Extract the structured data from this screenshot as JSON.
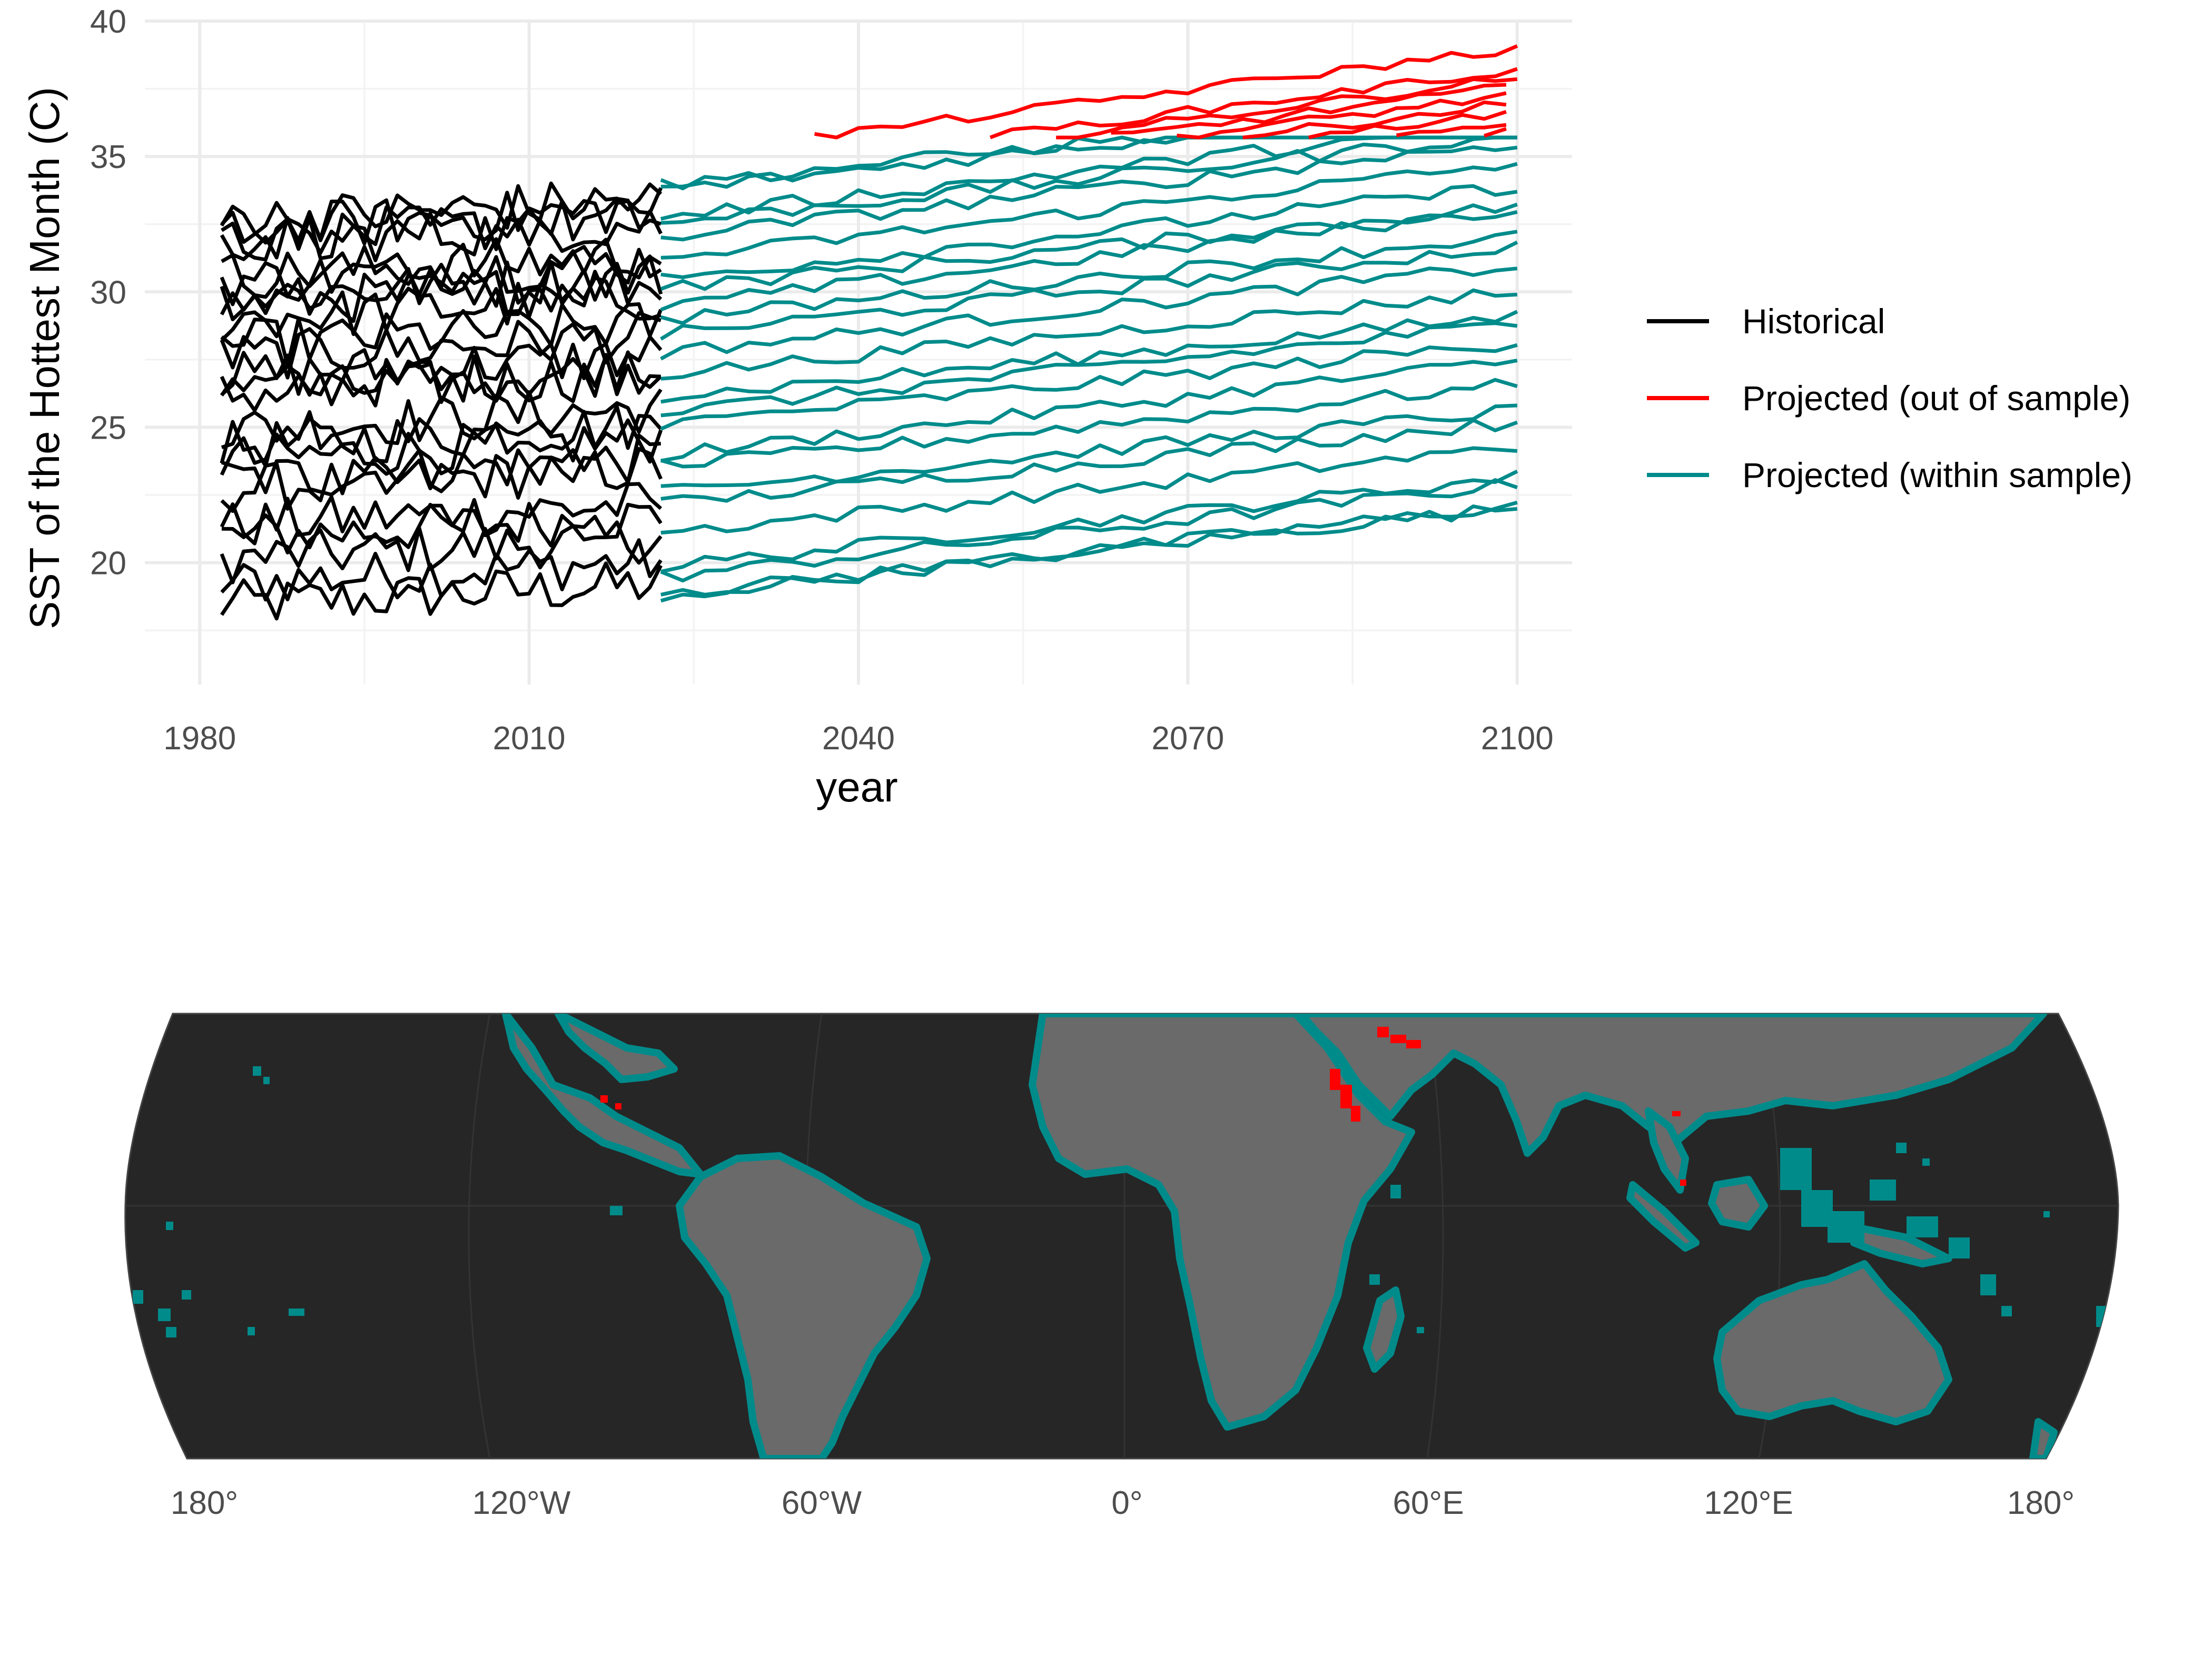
{
  "chart_data": [
    {
      "type": "line",
      "title": "",
      "xlabel": "year",
      "ylabel": "SST of the Hottest Month (C)",
      "xlim": [
        1975,
        2105
      ],
      "ylim": [
        15.5,
        40
      ],
      "xticks": [
        1980,
        2010,
        2040,
        2070,
        2100
      ],
      "yticks": [
        20,
        25,
        30,
        35,
        40
      ],
      "grid": true,
      "legend_position": "right",
      "historical_period": [
        1982,
        2022
      ],
      "projected_period": [
        2022,
        2100
      ],
      "out_of_sample_threshold": 35.7,
      "series": [
        {
          "name": "Historical",
          "color": "#000000",
          "start": [
            18.3,
            19.0,
            19.8,
            20.8,
            21.6,
            22.4,
            23.2,
            24.0,
            24.6,
            25.3,
            26.0,
            26.6,
            27.2,
            27.8,
            28.3,
            28.8,
            29.3,
            29.9,
            30.4,
            30.9,
            31.4,
            31.8,
            32.2,
            32.5
          ]
        },
        {
          "name": "Projected (out of sample)",
          "color": "#ff0000",
          "end_2100": [
            35.9,
            36.3,
            36.7,
            37.0,
            37.3,
            37.6,
            37.9,
            38.2,
            39.0
          ]
        },
        {
          "name": "Projected (within sample)",
          "color": "#008b8b",
          "start_2022": [
            18.6,
            19.1,
            19.6,
            20.1,
            21.3,
            22.2,
            22.8,
            23.4,
            24.2,
            25.0,
            25.8,
            26.4,
            27.0,
            27.6,
            28.2,
            28.8,
            29.4,
            30.0,
            30.6,
            31.2,
            31.8,
            32.4,
            33.0,
            33.6,
            34.1
          ],
          "increase_by_2100": 3.3
        }
      ]
    },
    {
      "type": "map",
      "title": "",
      "projection": "robinson",
      "xticks": [
        "180°",
        "120°W",
        "60°W",
        "0°",
        "60°E",
        "120°E",
        "180°"
      ],
      "colors": {
        "ocean": "#262626",
        "land": "#6a6a6a",
        "within_sample": "#008b8b",
        "out_of_sample": "#ff0000"
      },
      "regions_out_of_sample": [
        "Red Sea",
        "Persian Gulf",
        "Gulf of California",
        "Gulf of Thailand"
      ]
    }
  ]
}
